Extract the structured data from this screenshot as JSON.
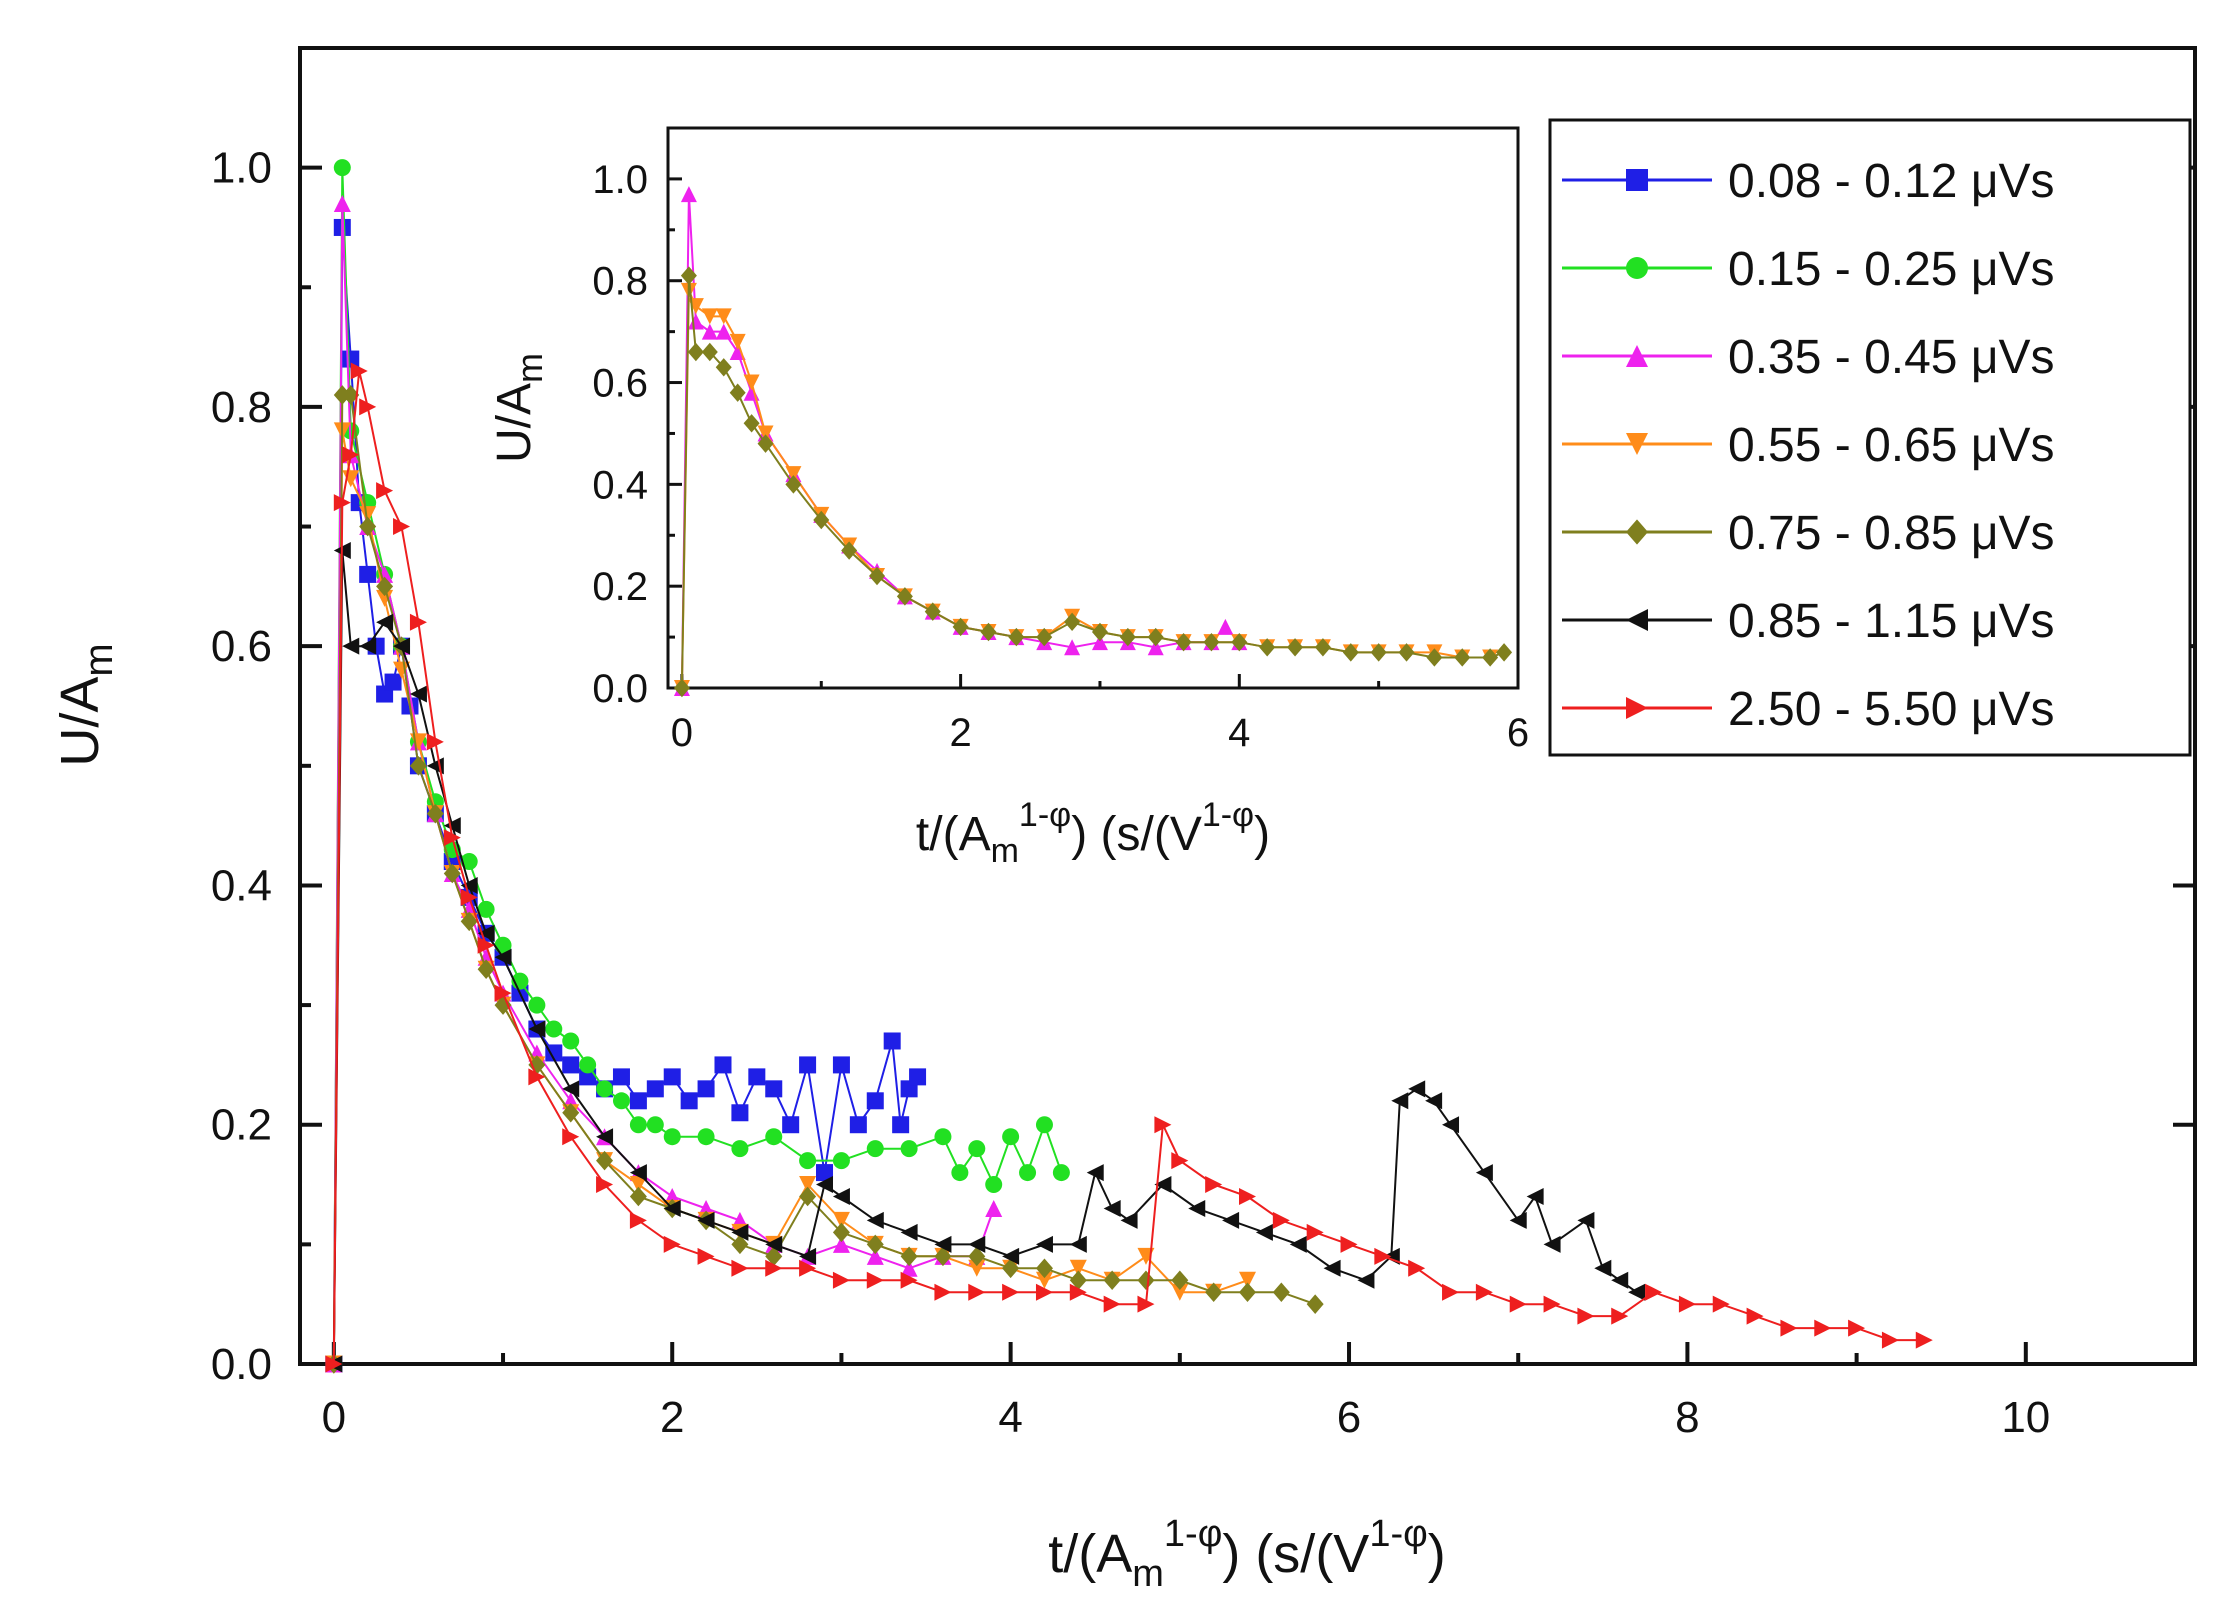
{
  "chart_data": [
    {
      "id": "main",
      "type": "scatter",
      "xlabel": {
        "base": "t/(A",
        "sub": "m",
        "sup1": "1-φ",
        "mid": ") (s/(V",
        "sup2": "1-φ",
        "end": ")"
      },
      "ylabel": {
        "base": "U/A",
        "sub": "m"
      },
      "xlim": [
        -0.2,
        11
      ],
      "ylim": [
        0,
        1.1
      ],
      "xticks": [
        "0",
        "2",
        "4",
        "6",
        "8",
        "10"
      ],
      "yticks": [
        "0.0",
        "0.2",
        "0.4",
        "0.6",
        "0.8",
        "1.0"
      ],
      "legend_position": "top-right",
      "series": [
        {
          "name": "0.08 - 0.12 μVs",
          "color": "#1f1fe6",
          "marker": "square",
          "x": [
            0,
            0.05,
            0.1,
            0.15,
            0.2,
            0.25,
            0.3,
            0.35,
            0.4,
            0.45,
            0.5,
            0.6,
            0.7,
            0.8,
            0.9,
            1.0,
            1.1,
            1.2,
            1.3,
            1.4,
            1.5,
            1.6,
            1.7,
            1.8,
            1.9,
            2.0,
            2.1,
            2.2,
            2.3,
            2.4,
            2.5,
            2.6,
            2.7,
            2.8,
            2.9,
            3.0,
            3.1,
            3.2,
            3.3,
            3.35,
            3.4,
            3.45
          ],
          "y": [
            0,
            0.95,
            0.84,
            0.72,
            0.66,
            0.6,
            0.56,
            0.57,
            0.6,
            0.55,
            0.5,
            0.46,
            0.42,
            0.39,
            0.36,
            0.34,
            0.31,
            0.28,
            0.26,
            0.25,
            0.24,
            0.23,
            0.24,
            0.22,
            0.23,
            0.24,
            0.22,
            0.23,
            0.25,
            0.21,
            0.24,
            0.23,
            0.2,
            0.25,
            0.16,
            0.25,
            0.2,
            0.22,
            0.27,
            0.2,
            0.23,
            0.24
          ]
        },
        {
          "name": "0.15 - 0.25 μVs",
          "color": "#22e022",
          "marker": "circle",
          "x": [
            0,
            0.05,
            0.1,
            0.2,
            0.3,
            0.4,
            0.5,
            0.6,
            0.7,
            0.8,
            0.9,
            1.0,
            1.1,
            1.2,
            1.3,
            1.4,
            1.5,
            1.6,
            1.7,
            1.8,
            1.9,
            2.0,
            2.2,
            2.4,
            2.6,
            2.8,
            3.0,
            3.2,
            3.4,
            3.6,
            3.7,
            3.8,
            3.9,
            4.0,
            4.1,
            4.2,
            4.3
          ],
          "y": [
            0,
            1.0,
            0.78,
            0.72,
            0.66,
            0.6,
            0.52,
            0.47,
            0.43,
            0.42,
            0.38,
            0.35,
            0.32,
            0.3,
            0.28,
            0.27,
            0.25,
            0.23,
            0.22,
            0.2,
            0.2,
            0.19,
            0.19,
            0.18,
            0.19,
            0.17,
            0.17,
            0.18,
            0.18,
            0.19,
            0.16,
            0.18,
            0.15,
            0.19,
            0.16,
            0.2,
            0.16
          ]
        },
        {
          "name": "0.35 - 0.45 μVs",
          "color": "#ee22ee",
          "marker": "triangle-up",
          "x": [
            0,
            0.05,
            0.1,
            0.2,
            0.3,
            0.4,
            0.5,
            0.6,
            0.7,
            0.8,
            0.9,
            1.0,
            1.2,
            1.4,
            1.6,
            1.8,
            2.0,
            2.2,
            2.4,
            2.6,
            2.8,
            3.0,
            3.2,
            3.4,
            3.6,
            3.8,
            3.9
          ],
          "y": [
            0,
            0.97,
            0.76,
            0.7,
            0.66,
            0.6,
            0.52,
            0.46,
            0.41,
            0.38,
            0.34,
            0.31,
            0.26,
            0.22,
            0.19,
            0.16,
            0.14,
            0.13,
            0.12,
            0.1,
            0.09,
            0.1,
            0.09,
            0.08,
            0.09,
            0.09,
            0.13
          ]
        },
        {
          "name": "0.55 - 0.65 μVs",
          "color": "#ff8c1a",
          "marker": "triangle-down",
          "x": [
            0,
            0.05,
            0.1,
            0.2,
            0.3,
            0.4,
            0.5,
            0.6,
            0.7,
            0.8,
            0.9,
            1.0,
            1.2,
            1.4,
            1.6,
            1.8,
            2.0,
            2.2,
            2.4,
            2.6,
            2.8,
            3.0,
            3.2,
            3.4,
            3.6,
            3.8,
            4.0,
            4.2,
            4.4,
            4.6,
            4.8,
            5.0,
            5.2,
            5.4
          ],
          "y": [
            0,
            0.78,
            0.74,
            0.71,
            0.64,
            0.58,
            0.52,
            0.46,
            0.41,
            0.37,
            0.33,
            0.3,
            0.25,
            0.21,
            0.17,
            0.15,
            0.13,
            0.12,
            0.11,
            0.1,
            0.15,
            0.12,
            0.1,
            0.09,
            0.09,
            0.08,
            0.08,
            0.07,
            0.08,
            0.07,
            0.09,
            0.06,
            0.06,
            0.07
          ]
        },
        {
          "name": "0.75 - 0.85 μVs",
          "color": "#7f7f1e",
          "marker": "diamond",
          "x": [
            0,
            0.05,
            0.1,
            0.2,
            0.3,
            0.4,
            0.5,
            0.6,
            0.7,
            0.8,
            0.9,
            1.0,
            1.2,
            1.4,
            1.6,
            1.8,
            2.0,
            2.2,
            2.4,
            2.6,
            2.8,
            3.0,
            3.2,
            3.4,
            3.6,
            3.8,
            4.0,
            4.2,
            4.4,
            4.6,
            4.8,
            5.0,
            5.2,
            5.4,
            5.6,
            5.8
          ],
          "y": [
            0,
            0.81,
            0.81,
            0.7,
            0.65,
            0.6,
            0.5,
            0.46,
            0.41,
            0.37,
            0.33,
            0.3,
            0.25,
            0.21,
            0.17,
            0.14,
            0.13,
            0.12,
            0.1,
            0.09,
            0.14,
            0.11,
            0.1,
            0.09,
            0.09,
            0.09,
            0.08,
            0.08,
            0.07,
            0.07,
            0.07,
            0.07,
            0.06,
            0.06,
            0.06,
            0.05
          ]
        },
        {
          "name": "0.85 - 1.15 μVs",
          "color": "#111111",
          "marker": "triangle-left",
          "x": [
            0,
            0.05,
            0.1,
            0.2,
            0.3,
            0.4,
            0.5,
            0.6,
            0.7,
            0.8,
            0.9,
            1.0,
            1.2,
            1.4,
            1.6,
            1.8,
            2.0,
            2.2,
            2.4,
            2.6,
            2.8,
            2.9,
            3.0,
            3.2,
            3.4,
            3.6,
            3.8,
            4.0,
            4.2,
            4.4,
            4.5,
            4.6,
            4.7,
            4.9,
            5.1,
            5.3,
            5.5,
            5.7,
            5.9,
            6.1,
            6.25,
            6.3,
            6.4,
            6.5,
            6.6,
            6.8,
            7.0,
            7.1,
            7.2,
            7.4,
            7.5,
            7.6,
            7.7
          ],
          "y": [
            0,
            0.68,
            0.6,
            0.6,
            0.62,
            0.6,
            0.56,
            0.5,
            0.45,
            0.4,
            0.36,
            0.34,
            0.28,
            0.23,
            0.19,
            0.16,
            0.13,
            0.12,
            0.11,
            0.1,
            0.09,
            0.15,
            0.14,
            0.12,
            0.11,
            0.1,
            0.1,
            0.09,
            0.1,
            0.1,
            0.16,
            0.13,
            0.12,
            0.15,
            0.13,
            0.12,
            0.11,
            0.1,
            0.08,
            0.07,
            0.09,
            0.22,
            0.23,
            0.22,
            0.2,
            0.16,
            0.12,
            0.14,
            0.1,
            0.12,
            0.08,
            0.07,
            0.06
          ]
        },
        {
          "name": "2.50 - 5.50 μVs",
          "color": "#ee1f1f",
          "marker": "triangle-right",
          "x": [
            0,
            0.05,
            0.1,
            0.15,
            0.2,
            0.3,
            0.4,
            0.5,
            0.6,
            0.7,
            0.8,
            0.9,
            1.0,
            1.2,
            1.4,
            1.6,
            1.8,
            2.0,
            2.2,
            2.4,
            2.6,
            2.8,
            3.0,
            3.2,
            3.4,
            3.6,
            3.8,
            4.0,
            4.2,
            4.4,
            4.6,
            4.8,
            4.9,
            5.0,
            5.2,
            5.4,
            5.6,
            5.8,
            6.0,
            6.2,
            6.4,
            6.6,
            6.8,
            7.0,
            7.2,
            7.4,
            7.6,
            7.8,
            8.0,
            8.2,
            8.4,
            8.6,
            8.8,
            9.0,
            9.2,
            9.4
          ],
          "y": [
            0,
            0.72,
            0.76,
            0.83,
            0.8,
            0.73,
            0.7,
            0.62,
            0.52,
            0.44,
            0.39,
            0.35,
            0.31,
            0.24,
            0.19,
            0.15,
            0.12,
            0.1,
            0.09,
            0.08,
            0.08,
            0.08,
            0.07,
            0.07,
            0.07,
            0.06,
            0.06,
            0.06,
            0.06,
            0.06,
            0.05,
            0.05,
            0.2,
            0.17,
            0.15,
            0.14,
            0.12,
            0.11,
            0.1,
            0.09,
            0.08,
            0.06,
            0.06,
            0.05,
            0.05,
            0.04,
            0.04,
            0.06,
            0.05,
            0.05,
            0.04,
            0.03,
            0.03,
            0.03,
            0.02,
            0.02
          ]
        }
      ]
    },
    {
      "id": "inset",
      "type": "scatter",
      "xlabel": {
        "base": "t/(A",
        "sub": "m",
        "sup1": "1-φ",
        "mid": ") (s/(V",
        "sup2": "1-φ",
        "end": ")"
      },
      "ylabel": {
        "base": "U/A",
        "sub": "m"
      },
      "xlim": [
        -0.1,
        6
      ],
      "ylim": [
        0,
        1.1
      ],
      "xticks": [
        "0",
        "2",
        "4",
        "6"
      ],
      "yticks": [
        "0.0",
        "0.2",
        "0.4",
        "0.6",
        "0.8",
        "1.0"
      ],
      "series": [
        {
          "name": "0.35 - 0.45 μVs",
          "color": "#ee22ee",
          "marker": "triangle-up",
          "x": [
            0,
            0.05,
            0.1,
            0.2,
            0.3,
            0.4,
            0.5,
            0.6,
            0.8,
            1.0,
            1.2,
            1.4,
            1.6,
            1.8,
            2.0,
            2.2,
            2.4,
            2.6,
            2.8,
            3.0,
            3.2,
            3.4,
            3.6,
            3.8,
            3.9,
            4.0
          ],
          "y": [
            0,
            0.97,
            0.72,
            0.7,
            0.7,
            0.66,
            0.58,
            0.5,
            0.42,
            0.34,
            0.28,
            0.23,
            0.18,
            0.15,
            0.12,
            0.11,
            0.1,
            0.09,
            0.08,
            0.09,
            0.09,
            0.08,
            0.09,
            0.09,
            0.12,
            0.09
          ]
        },
        {
          "name": "0.55 - 0.65 μVs",
          "color": "#ff8c1a",
          "marker": "triangle-down",
          "x": [
            0,
            0.05,
            0.1,
            0.2,
            0.3,
            0.4,
            0.5,
            0.6,
            0.8,
            1.0,
            1.2,
            1.4,
            1.6,
            1.8,
            2.0,
            2.2,
            2.4,
            2.6,
            2.8,
            3.0,
            3.2,
            3.4,
            3.6,
            3.8,
            4.0,
            4.2,
            4.4,
            4.6,
            4.8,
            5.0,
            5.2,
            5.4,
            5.6,
            5.8
          ],
          "y": [
            0,
            0.78,
            0.75,
            0.73,
            0.73,
            0.68,
            0.6,
            0.5,
            0.42,
            0.34,
            0.28,
            0.22,
            0.18,
            0.15,
            0.12,
            0.11,
            0.1,
            0.1,
            0.14,
            0.11,
            0.1,
            0.1,
            0.09,
            0.09,
            0.09,
            0.08,
            0.08,
            0.08,
            0.07,
            0.07,
            0.07,
            0.07,
            0.06,
            0.06
          ]
        },
        {
          "name": "0.75 - 0.85 μVs",
          "color": "#7f7f1e",
          "marker": "diamond",
          "x": [
            0,
            0.05,
            0.1,
            0.2,
            0.3,
            0.4,
            0.5,
            0.6,
            0.8,
            1.0,
            1.2,
            1.4,
            1.6,
            1.8,
            2.0,
            2.2,
            2.4,
            2.6,
            2.8,
            3.0,
            3.2,
            3.4,
            3.6,
            3.8,
            4.0,
            4.2,
            4.4,
            4.6,
            4.8,
            5.0,
            5.2,
            5.4,
            5.6,
            5.8,
            5.9
          ],
          "y": [
            0,
            0.81,
            0.66,
            0.66,
            0.63,
            0.58,
            0.52,
            0.48,
            0.4,
            0.33,
            0.27,
            0.22,
            0.18,
            0.15,
            0.12,
            0.11,
            0.1,
            0.1,
            0.13,
            0.11,
            0.1,
            0.1,
            0.09,
            0.09,
            0.09,
            0.08,
            0.08,
            0.08,
            0.07,
            0.07,
            0.07,
            0.06,
            0.06,
            0.06,
            0.07
          ]
        }
      ]
    }
  ]
}
